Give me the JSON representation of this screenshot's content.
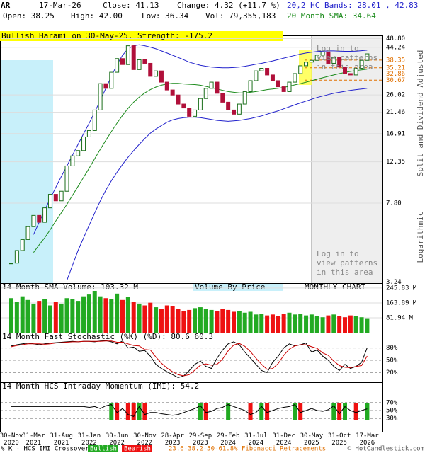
{
  "header": {
    "symbol": "AR",
    "date": "17-Mar-26",
    "close": "Close: 41.13",
    "change": "Change: 4.32 (+11.7 %)",
    "open": "Open: 38.25",
    "high": "High: 42.00",
    "low": "Low: 36.34",
    "volume": "Vol: 79,355,183",
    "bands": "20,2 HC Bands: 28.01 , 42.83",
    "sma": "20 Month SMA: 34.64",
    "crossover_label": "% K - HCS IMI Crossover:",
    "bullish": "Bullish",
    "bearish": "Bearish",
    "fibonacci": "23.6-38.2-50-61.8% Fibonacci Retracements",
    "copyright": "© HotCandlestick.com"
  },
  "chart_data": [
    {
      "type": "candlestick",
      "annotation": "Bullish Harami on 30-May-25, Strength: -175.2",
      "login_note": "Log in to view patterns in this area",
      "side_labels": [
        "Split and Dividend Adjusted",
        "Logarithmic"
      ],
      "log_scale": true,
      "up_color": "#1a6e1a",
      "down_color": "#b0103a",
      "categories": [
        "30-Nov 2020",
        null,
        null,
        null,
        "31-Mar 2021",
        null,
        null,
        null,
        null,
        "31-Aug 2021",
        null,
        null,
        null,
        null,
        "31-Jan 2022",
        null,
        null,
        null,
        null,
        "30-Jun 2022",
        null,
        null,
        null,
        null,
        "30-Nov 2022",
        null,
        null,
        null,
        null,
        "28-Apr 2023",
        null,
        null,
        null,
        null,
        "29-Sep 2023",
        null,
        null,
        null,
        null,
        "29-Feb 2024",
        null,
        null,
        null,
        null,
        "31-Jul 2024",
        null,
        null,
        null,
        null,
        "31-Dec 2024",
        null,
        null,
        null,
        null,
        "30-May 2025",
        null,
        null,
        null,
        null,
        "31-Oct 2025",
        null,
        null,
        null,
        null,
        "17-Mar 2026"
      ],
      "close": [
        4.0,
        4.6,
        5.2,
        6.0,
        6.8,
        6.3,
        7.4,
        8.6,
        8.0,
        8.9,
        11.8,
        13.2,
        14.0,
        16.3,
        17.5,
        22.0,
        29.5,
        28.0,
        33.5,
        39.0,
        36.5,
        45.0,
        34.5,
        38.5,
        37.0,
        32.0,
        34.0,
        30.0,
        27.5,
        26.0,
        23.5,
        22.5,
        20.5,
        22.0,
        25.0,
        28.0,
        30.0,
        26.5,
        24.0,
        22.0,
        21.0,
        23.5,
        27.0,
        30.5,
        34.0,
        35.0,
        32.5,
        30.5,
        28.5,
        27.0,
        30.0,
        33.0,
        36.0,
        37.5,
        38.25,
        40.5,
        42.0,
        37.0,
        39.5,
        35.5,
        33.0,
        32.5,
        35.0,
        38.25,
        41.13
      ],
      "overlays": [
        {
          "color": "#1a8a1a",
          "values": [
            null,
            null,
            null,
            null,
            4.5,
            4.9,
            5.3,
            5.8,
            6.4,
            7.0,
            7.7,
            8.5,
            9.4,
            10.4,
            11.5,
            12.8,
            14.2,
            15.7,
            17.3,
            19.0,
            20.7,
            22.4,
            24.0,
            25.4,
            26.6,
            27.6,
            28.4,
            29.0,
            29.4,
            29.6,
            29.6,
            29.4,
            29.3,
            29.2,
            29.0,
            28.6,
            28.2,
            27.8,
            27.4,
            27.0,
            26.8,
            26.6,
            26.6,
            26.8,
            27.0,
            27.3,
            27.6,
            27.8,
            28.0,
            28.3,
            28.7,
            29.1,
            29.5,
            30.0,
            30.5,
            31.0,
            31.5,
            32.0,
            32.5,
            33.0,
            33.4,
            33.8,
            34.1,
            34.4,
            34.64
          ]
        },
        {
          "color": "#2222cc",
          "values": [
            null,
            null,
            null,
            null,
            5.5,
            6.3,
            7.2,
            8.2,
            9.3,
            10.5,
            11.8,
            13.3,
            15.0,
            16.9,
            19.0,
            21.5,
            24.5,
            28.0,
            32.0,
            36.5,
            40.5,
            43.5,
            45.0,
            45.5,
            45.0,
            44.3,
            43.5,
            42.5,
            41.5,
            40.5,
            39.5,
            38.5,
            37.5,
            36.8,
            36.2,
            35.8,
            35.5,
            35.3,
            35.2,
            35.2,
            35.3,
            35.5,
            35.8,
            36.2,
            36.6,
            37.0,
            37.5,
            38.0,
            38.6,
            39.2,
            39.8,
            40.4,
            41.0,
            41.5,
            41.9,
            42.2,
            42.4,
            42.5,
            42.5,
            42.4,
            42.3,
            42.3,
            42.4,
            42.6,
            42.83
          ]
        },
        {
          "color": "#2222cc",
          "values": [
            null,
            null,
            null,
            null,
            null,
            null,
            null,
            null,
            null,
            null,
            3.3,
            3.9,
            4.6,
            5.3,
            6.1,
            7.0,
            8.0,
            9.0,
            10.0,
            11.0,
            12.0,
            13.0,
            14.0,
            15.0,
            16.0,
            17.0,
            17.8,
            18.5,
            19.2,
            19.7,
            20.0,
            20.2,
            20.3,
            20.3,
            20.2,
            20.0,
            19.8,
            19.6,
            19.5,
            19.4,
            19.5,
            19.6,
            19.8,
            20.0,
            20.3,
            20.6,
            21.0,
            21.4,
            21.8,
            22.3,
            22.8,
            23.3,
            23.8,
            24.3,
            24.8,
            25.3,
            25.7,
            26.1,
            26.5,
            26.8,
            27.1,
            27.4,
            27.6,
            27.8,
            28.01
          ]
        }
      ],
      "fib_color": "#e07000",
      "fib_levels": [
        38.35,
        35.21,
        32.86,
        30.67
      ],
      "ylim": [
        3.2,
        50.5
      ],
      "yticks": [
        3.24,
        {
          "value": 7.8,
          "label": "7.80"
        },
        12.35,
        16.91,
        21.46,
        26.02,
        44.24,
        {
          "value": 48.8,
          "label": "48.80"
        }
      ],
      "grid": true
    },
    {
      "type": "bar",
      "title": "14 Month SMA Volume: 103.32 M",
      "subtitle": "Volume By Price",
      "chart_label": "MONTHLY CHART",
      "up_color": "#22aa22",
      "down_color": "#ee1111",
      "values": [
        190,
        170,
        200,
        180,
        160,
        175,
        185,
        150,
        170,
        160,
        190,
        185,
        175,
        200,
        210,
        230,
        200,
        190,
        185,
        215,
        180,
        195,
        170,
        160,
        150,
        165,
        140,
        130,
        150,
        145,
        130,
        120,
        125,
        135,
        140,
        130,
        125,
        120,
        130,
        125,
        115,
        120,
        110,
        115,
        100,
        105,
        95,
        100,
        90,
        105,
        110,
        100,
        105,
        95,
        100,
        90,
        85,
        95,
        100,
        90,
        85,
        95,
        90,
        85,
        79.355183
      ],
      "ylim": [
        0,
        265
      ],
      "yticks": [
        {
          "value": 81.94,
          "label": "81.94 M"
        },
        {
          "value": 163.89,
          "label": "163.89 M"
        },
        {
          "value": 245.83,
          "label": "245.83 M"
        }
      ]
    },
    {
      "type": "line",
      "title": "14 Month Fast Stochastic (%K) (%D): 80.6  60.3",
      "series": [
        {
          "color": "#000000",
          "values": [
            85,
            88,
            90,
            92,
            90,
            88,
            90,
            92,
            93,
            94,
            95,
            96,
            95,
            96,
            96,
            95,
            97,
            98,
            95,
            90,
            97,
            80,
            82,
            72,
            74,
            60,
            40,
            30,
            22,
            15,
            8,
            12,
            25,
            40,
            48,
            35,
            30,
            55,
            75,
            90,
            95,
            88,
            70,
            55,
            40,
            25,
            20,
            45,
            60,
            80,
            90,
            85,
            88,
            92,
            70,
            75,
            60,
            50,
            35,
            25,
            40,
            30,
            35,
            45,
            80.6
          ]
        },
        {
          "color": "#cc0000",
          "values": [
            83,
            86,
            88,
            90,
            90,
            90,
            89,
            90,
            92,
            93,
            94,
            95,
            95,
            96,
            96,
            96,
            96,
            97,
            97,
            94,
            94,
            90,
            86,
            85,
            76,
            75,
            58,
            43,
            31,
            22,
            15,
            12,
            15,
            26,
            38,
            41,
            38,
            40,
            53,
            73,
            87,
            91,
            84,
            71,
            55,
            40,
            28,
            30,
            42,
            62,
            77,
            85,
            88,
            88,
            83,
            79,
            68,
            62,
            48,
            37,
            33,
            32,
            35,
            37,
            60.3
          ]
        }
      ],
      "ylim": [
        0,
        100
      ],
      "yticks": [
        {
          "value": 20,
          "label": "20%"
        },
        {
          "value": 50,
          "label": "50%"
        },
        {
          "value": 80,
          "label": "80%"
        }
      ]
    },
    {
      "type": "momentum",
      "title": "14 Month HCS Intraday Momentum (IMI): 54.2",
      "color": "#000000",
      "values": [
        60,
        60,
        60,
        60,
        60,
        60,
        60,
        60,
        60,
        60,
        60,
        60,
        60,
        60,
        58,
        60,
        55,
        62,
        65,
        45,
        55,
        40,
        35,
        60,
        40,
        45,
        45,
        42,
        40,
        38,
        40,
        45,
        50,
        55,
        62,
        45,
        48,
        55,
        58,
        65,
        60,
        55,
        50,
        40,
        45,
        60,
        45,
        50,
        55,
        58,
        60,
        65,
        45,
        50,
        55,
        50,
        48,
        52,
        62,
        42,
        60,
        50,
        45,
        50,
        54.2
      ],
      "bullish_color": "#22aa22",
      "bearish_color": "#ee1111",
      "bullish_crossovers": [
        18,
        23,
        34,
        39,
        45,
        51,
        58,
        60,
        64
      ],
      "bearish_crossovers": [
        19,
        21,
        22,
        24,
        35,
        43,
        46,
        52,
        59,
        62
      ],
      "ylim": [
        0,
        100
      ],
      "yticks": [
        {
          "value": 30,
          "label": "30%"
        },
        {
          "value": 50,
          "label": "50%"
        },
        {
          "value": 70,
          "label": "70%"
        }
      ]
    }
  ]
}
